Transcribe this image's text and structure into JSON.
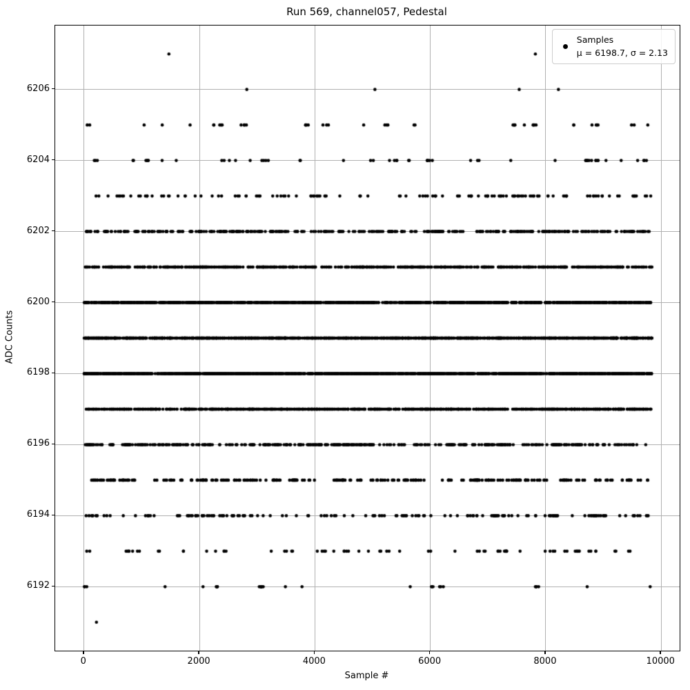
{
  "figure": {
    "title": "Run 569, channel057, Pedestal",
    "xlabel": "Sample #",
    "ylabel": "ADC Counts",
    "legend": {
      "marker_icon": "black-dot",
      "line1": "Samples",
      "line2": "μ = 6198.7, σ = 2.13"
    }
  },
  "chart_data": {
    "type": "scatter",
    "title": "Run 569, channel057, Pedestal",
    "xlabel": "Sample #",
    "ylabel": "ADC Counts",
    "xlim": [
      -500,
      10320
    ],
    "ylim": [
      6190.2,
      6207.8
    ],
    "xticks": [
      0,
      2000,
      4000,
      6000,
      8000,
      10000
    ],
    "yticks": [
      6192,
      6194,
      6196,
      6198,
      6200,
      6202,
      6204,
      6206
    ],
    "grid": true,
    "grid_color": "#b0b0b0",
    "marker_color": "#000000",
    "marker_radius_px": 2.3,
    "legend_position": "upper right",
    "stats": {
      "mu": 6198.7,
      "sigma": 2.13
    },
    "x_range": [
      0,
      9840
    ],
    "levels": [
      {
        "adc": 6207,
        "count": 2,
        "x": [
          1470,
          7820
        ]
      },
      {
        "adc": 6206,
        "count": 4,
        "x": [
          2820,
          5040,
          7540,
          8220
        ]
      },
      {
        "adc": 6205,
        "count": 45
      },
      {
        "adc": 6204,
        "count": 58
      },
      {
        "adc": 6203,
        "count": 140
      },
      {
        "adc": 6202,
        "count": 400
      },
      {
        "adc": 6201,
        "count": 800
      },
      {
        "adc": 6200,
        "count": 1250
      },
      {
        "adc": 6199,
        "count": 1700
      },
      {
        "adc": 6198,
        "count": 1600
      },
      {
        "adc": 6197,
        "count": 1000
      },
      {
        "adc": 6196,
        "count": 430
      },
      {
        "adc": 6195,
        "count": 280
      },
      {
        "adc": 6194,
        "count": 170
      },
      {
        "adc": 6193,
        "count": 75
      },
      {
        "adc": 6192,
        "count": 32
      },
      {
        "adc": 6191,
        "count": 1,
        "x": [
          215
        ]
      }
    ]
  }
}
